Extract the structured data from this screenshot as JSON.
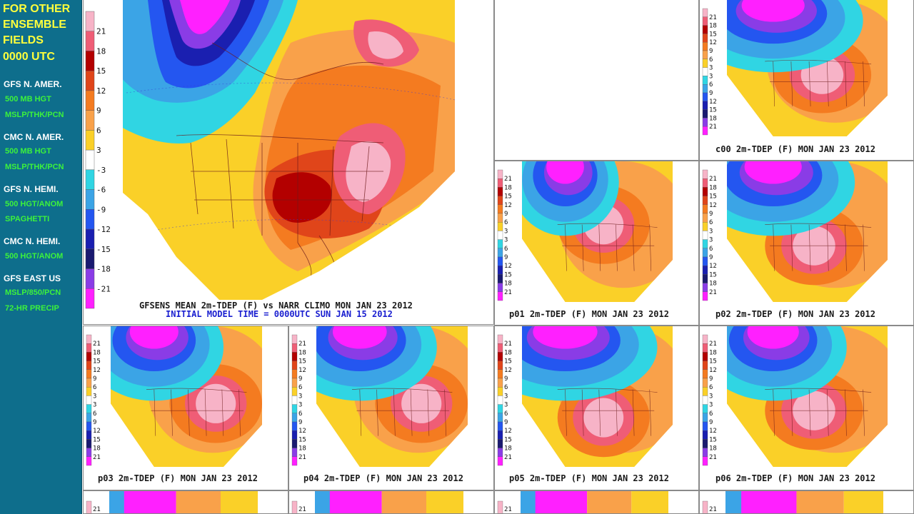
{
  "sidebar": {
    "heading": [
      "FOR OTHER",
      "ENSEMBLE",
      "FIELDS",
      "0000 UTC"
    ],
    "groups": [
      {
        "title": "GFS  N.  AMER.",
        "links": [
          "500 MB HGT",
          "MSLP/THK/PCN"
        ]
      },
      {
        "title": "CMC N. AMER.",
        "links": [
          "500 MB HGT",
          "MSLP/THK/PCN"
        ]
      },
      {
        "title": "GFS N. HEMI.",
        "links": [
          "500 HGT/ANOM",
          "SPAGHETTI"
        ]
      },
      {
        "title": "CMC N. HEMI.",
        "links": [
          "500 HGT/ANOM"
        ]
      },
      {
        "title": "GFS EAST US",
        "links": [
          "MSLP/850/PCN",
          "72-HR PRECIP"
        ]
      }
    ]
  },
  "colorbar": {
    "labels": [
      "21",
      "18",
      "15",
      "12",
      "9",
      "6",
      "3",
      "-3",
      "-6",
      "-9",
      "-12",
      "-15",
      "-18",
      "-21"
    ],
    "small_labels": [
      "21",
      "18",
      "15",
      "12",
      "9",
      "6",
      "3",
      "3",
      "6",
      "9",
      "12",
      "15",
      "18",
      "21"
    ],
    "colors": [
      "#f7b3c7",
      "#ef5d76",
      "#b30000",
      "#e0451a",
      "#f47b20",
      "#f9a14a",
      "#fad028",
      "#ffffff",
      "#30d5e3",
      "#3ba4e6",
      "#2456f0",
      "#1a1fb0",
      "#1a1a70",
      "#8a3ce6",
      "#ff20ff"
    ]
  },
  "main": {
    "caption": "GFSENS MEAN 2m-TDEP (F) vs NARR CLIMO MON JAN 23 2012",
    "subcaption": "INITIAL MODEL TIME = 0000UTC SUN JAN 15 2012"
  },
  "members": [
    {
      "caption": "c00  2m-TDEP (F) MON JAN 23 2012"
    },
    {
      "caption": "p01  2m-TDEP (F) MON JAN 23 2012"
    },
    {
      "caption": "p02  2m-TDEP (F) MON JAN 23 2012"
    },
    {
      "caption": "p03  2m-TDEP (F) MON JAN 23 2012"
    },
    {
      "caption": "p04  2m-TDEP (F) MON JAN 23 2012"
    },
    {
      "caption": "p05  2m-TDEP (F) MON JAN 23 2012"
    },
    {
      "caption": "p06  2m-TDEP (F) MON JAN 23 2012"
    }
  ],
  "bottom_row": {
    "colorbar_top_label": "21"
  }
}
